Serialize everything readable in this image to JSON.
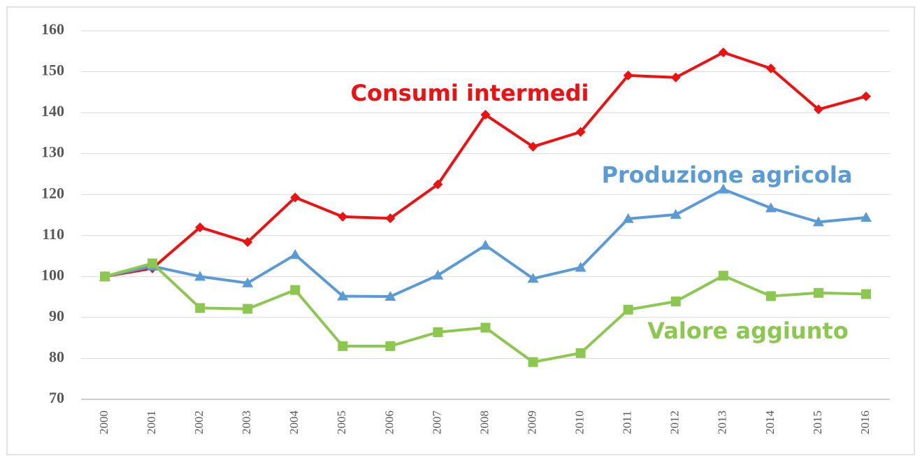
{
  "chart_data": {
    "type": "line",
    "categories": [
      "2000",
      "2001",
      "2002",
      "2003",
      "2004",
      "2005",
      "2006",
      "2007",
      "2008",
      "2009",
      "2010",
      "2011",
      "2012",
      "2013",
      "2014",
      "2015",
      "2016"
    ],
    "series": [
      {
        "name": "Consumi intermedi",
        "color": "#ee1111",
        "marker": "diamond",
        "values": [
          100,
          102,
          112,
          108.4,
          119.3,
          114.6,
          114.2,
          122.5,
          139.5,
          131.7,
          135.3,
          149.1,
          148.6,
          154.7,
          150.8,
          140.8,
          144
        ]
      },
      {
        "name": "Produzione agricola",
        "color": "#5b9bd5",
        "marker": "triangle",
        "values": [
          100,
          102.5,
          100,
          98.4,
          105.3,
          95.2,
          95.1,
          100.3,
          107.6,
          99.5,
          102.2,
          114.1,
          115.1,
          121.3,
          116.7,
          113.3,
          114.4
        ]
      },
      {
        "name": "Valore aggiunto",
        "color": "#8cc850",
        "marker": "square",
        "values": [
          100,
          103.2,
          92.3,
          92.1,
          96.7,
          83,
          83,
          86.4,
          87.5,
          79.1,
          81.3,
          91.9,
          93.9,
          100.2,
          95.2,
          96,
          95.7
        ]
      }
    ],
    "ylim": [
      70,
      160
    ],
    "yticks": [
      70,
      80,
      90,
      100,
      110,
      120,
      130,
      140,
      150,
      160
    ],
    "grid": true
  }
}
